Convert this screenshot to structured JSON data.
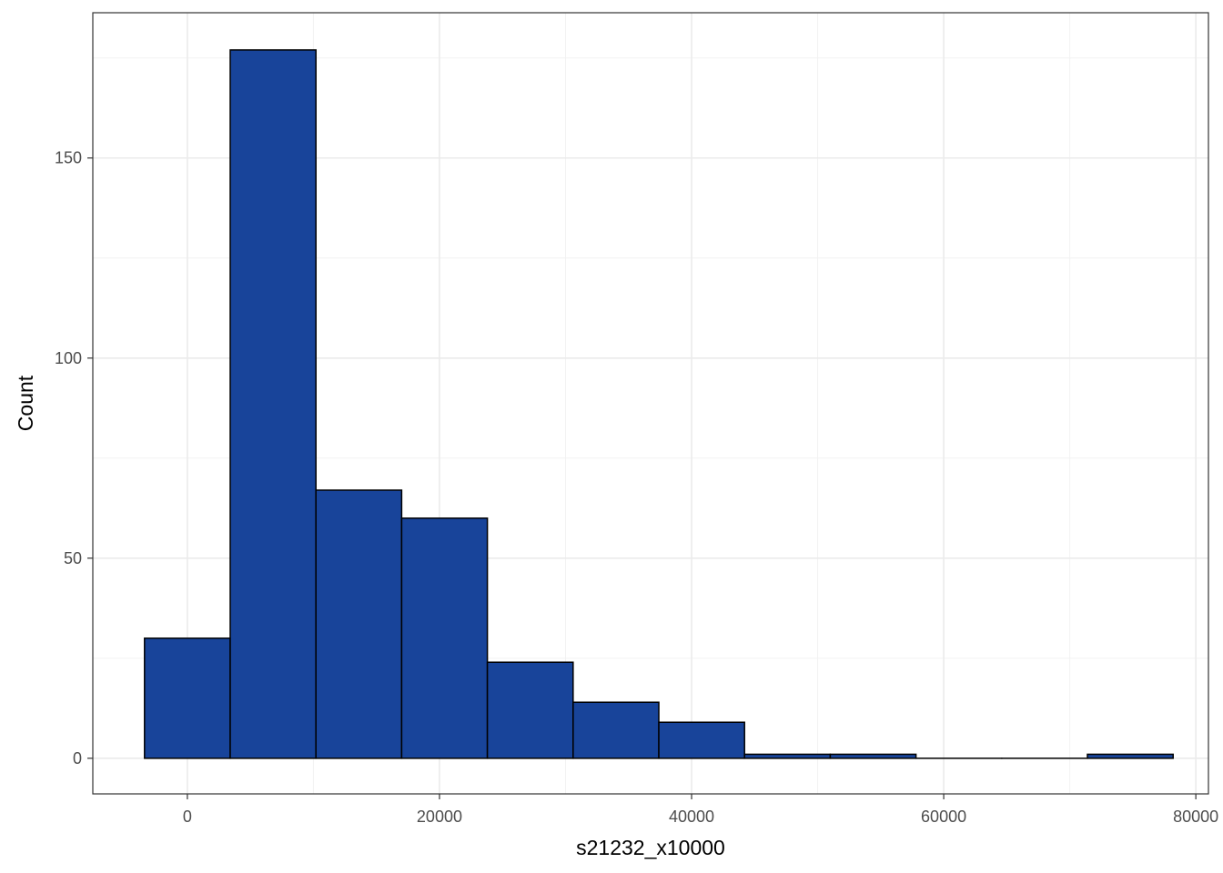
{
  "chart_data": {
    "type": "bar",
    "subtype": "histogram",
    "xlabel": "s21232_x10000",
    "ylabel": "Count",
    "xlim": [
      -7500,
      81000
    ],
    "ylim": [
      -8.9,
      186.3
    ],
    "x_ticks": [
      0,
      20000,
      40000,
      60000,
      80000
    ],
    "y_ticks": [
      0,
      50,
      100,
      150
    ],
    "x_minor_ticks": [
      10000,
      30000,
      50000,
      70000
    ],
    "y_minor_ticks": [
      25,
      75,
      125,
      175
    ],
    "bin_width": 6800,
    "bins": [
      {
        "x_start": -3400,
        "x_end": 3400,
        "count": 30
      },
      {
        "x_start": 3400,
        "x_end": 10200,
        "count": 177
      },
      {
        "x_start": 10200,
        "x_end": 17000,
        "count": 67
      },
      {
        "x_start": 17000,
        "x_end": 23800,
        "count": 60
      },
      {
        "x_start": 23800,
        "x_end": 30600,
        "count": 24
      },
      {
        "x_start": 30600,
        "x_end": 37400,
        "count": 14
      },
      {
        "x_start": 37400,
        "x_end": 44200,
        "count": 9
      },
      {
        "x_start": 44200,
        "x_end": 51000,
        "count": 1
      },
      {
        "x_start": 51000,
        "x_end": 57800,
        "count": 1
      },
      {
        "x_start": 57800,
        "x_end": 64600,
        "count": 0
      },
      {
        "x_start": 64600,
        "x_end": 71400,
        "count": 0
      },
      {
        "x_start": 71400,
        "x_end": 78200,
        "count": 1
      }
    ],
    "fill_color": "#18449A",
    "outline_color": "#000000",
    "grid": true,
    "panel_border": true,
    "legend": "none"
  }
}
